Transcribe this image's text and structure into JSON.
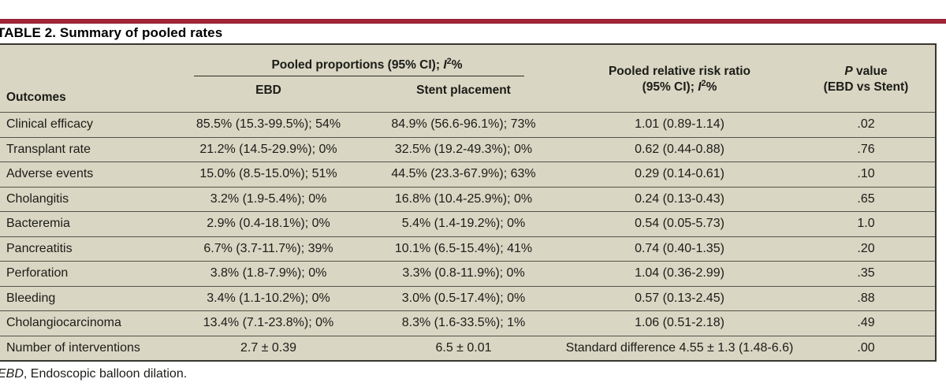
{
  "page": {
    "title": "TABLE 2. Summary of pooled rates",
    "footnote": {
      "abbr_italic": "EBD",
      "rest": ", Endoscopic balloon dilation."
    }
  },
  "colors": {
    "accent_bar": "#a32537",
    "table_background": "#d9d6c3",
    "table_border": "#38382f",
    "row_separator": "#53534a"
  },
  "table": {
    "header": {
      "outcomes": "Outcomes",
      "pooled_proportions": {
        "pre": "Pooled proportions (95% CI); ",
        "i_italic": "I",
        "sup": "2",
        "post": "%"
      },
      "ebd": "EBD",
      "stent": "Stent placement",
      "risk_ratio_line1": "Pooled relative risk ratio",
      "risk_ratio_line2": {
        "pre": "(95% CI); ",
        "i_italic": "I",
        "sup": "2",
        "post": "%"
      },
      "p_value": {
        "p_italic": "P",
        "rest": " value"
      },
      "p_value_line2": "(EBD vs Stent)"
    },
    "rows": [
      {
        "outcome": "Clinical efficacy",
        "ebd": "85.5% (15.3-99.5%); 54%",
        "stent": "84.9% (56.6-96.1%); 73%",
        "rrr": "1.01 (0.89-1.14)",
        "p": ".02"
      },
      {
        "outcome": "Transplant rate",
        "ebd": "21.2% (14.5-29.9%); 0%",
        "stent": "32.5% (19.2-49.3%); 0%",
        "rrr": "0.62 (0.44-0.88)",
        "p": ".76"
      },
      {
        "outcome": "Adverse events",
        "ebd": "15.0% (8.5-15.0%); 51%",
        "stent": "44.5% (23.3-67.9%); 63%",
        "rrr": "0.29 (0.14-0.61)",
        "p": ".10"
      },
      {
        "outcome": "Cholangitis",
        "ebd": "3.2% (1.9-5.4%); 0%",
        "stent": "16.8% (10.4-25.9%); 0%",
        "rrr": "0.24 (0.13-0.43)",
        "p": ".65"
      },
      {
        "outcome": "Bacteremia",
        "ebd": "2.9% (0.4-18.1%); 0%",
        "stent": "5.4% (1.4-19.2%); 0%",
        "rrr": "0.54 (0.05-5.73)",
        "p": "1.0"
      },
      {
        "outcome": "Pancreatitis",
        "ebd": "6.7% (3.7-11.7%); 39%",
        "stent": "10.1% (6.5-15.4%); 41%",
        "rrr": "0.74 (0.40-1.35)",
        "p": ".20"
      },
      {
        "outcome": "Perforation",
        "ebd": "3.8% (1.8-7.9%); 0%",
        "stent": "3.3% (0.8-11.9%); 0%",
        "rrr": "1.04 (0.36-2.99)",
        "p": ".35"
      },
      {
        "outcome": "Bleeding",
        "ebd": "3.4% (1.1-10.2%); 0%",
        "stent": "3.0% (0.5-17.4%); 0%",
        "rrr": "0.57 (0.13-2.45)",
        "p": ".88"
      },
      {
        "outcome": "Cholangiocarcinoma",
        "ebd": "13.4% (7.1-23.8%); 0%",
        "stent": "8.3% (1.6-33.5%); 1%",
        "rrr": "1.06 (0.51-2.18)",
        "p": ".49"
      },
      {
        "outcome": "Number of interventions",
        "ebd": "2.7 ± 0.39",
        "stent": "6.5 ± 0.01",
        "rrr": "Standard difference 4.55 ± 1.3 (1.48-6.6)",
        "p": ".00"
      }
    ]
  }
}
